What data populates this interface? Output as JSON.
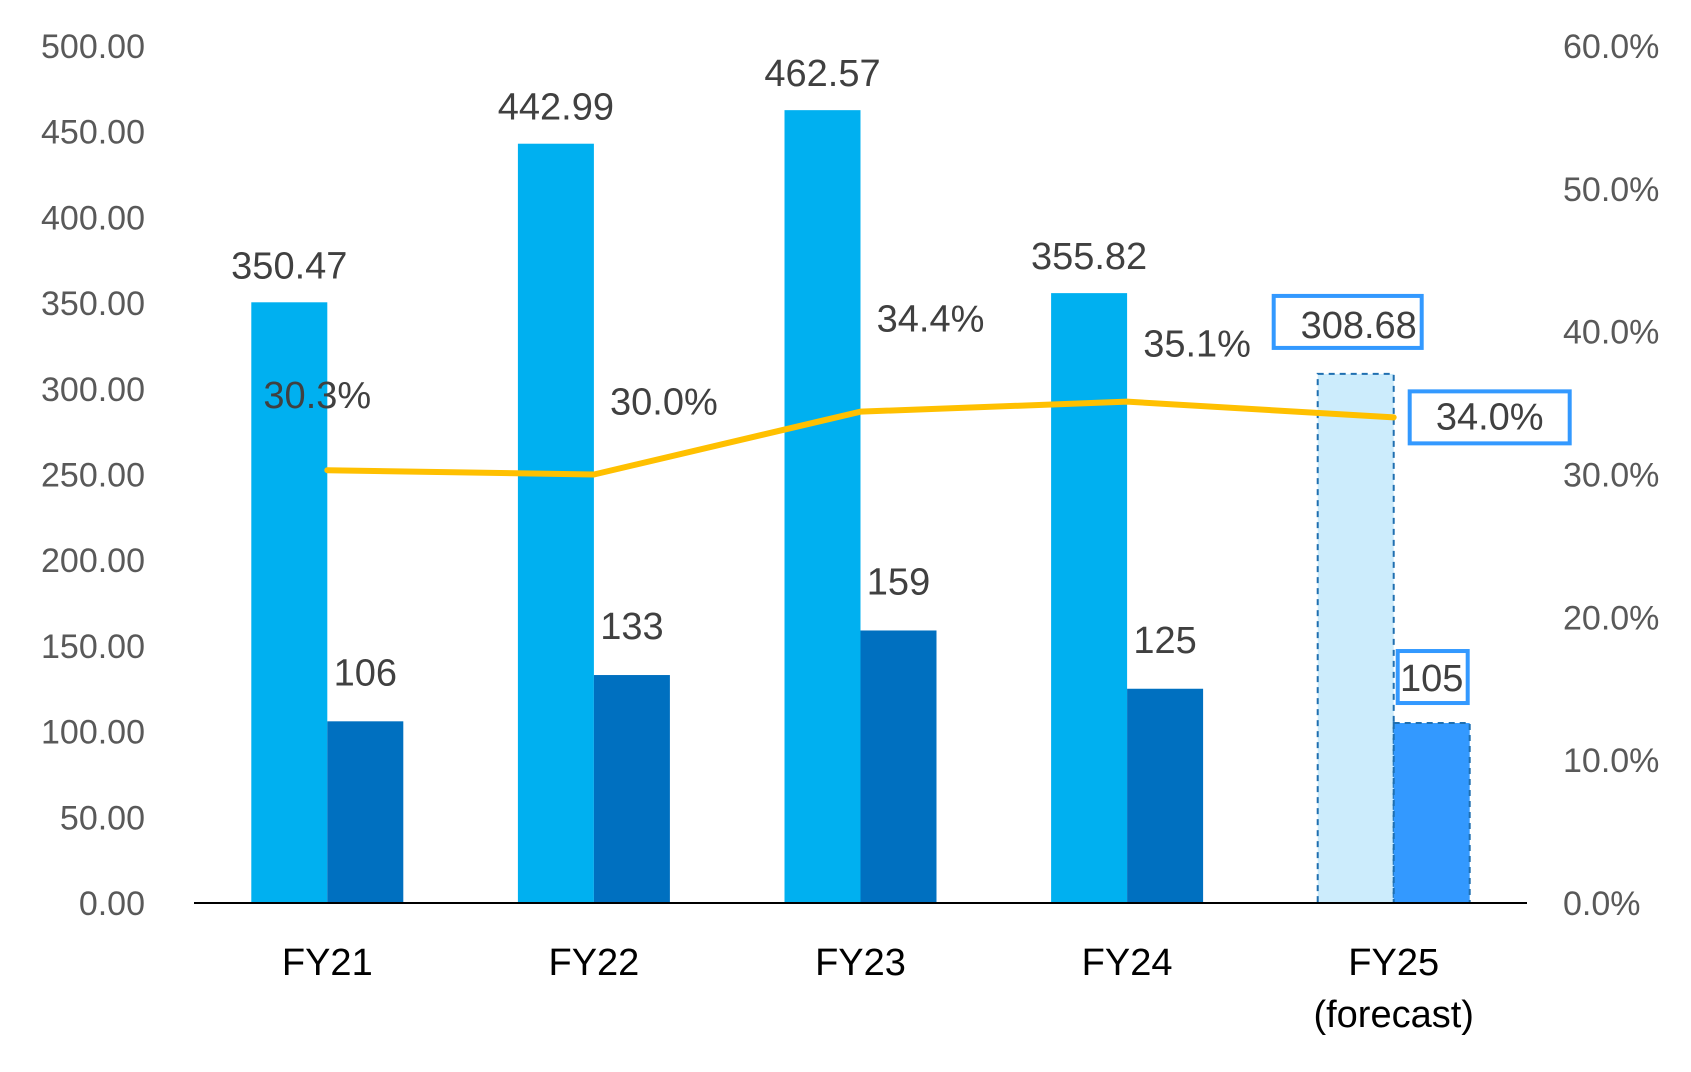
{
  "chart_data": {
    "type": "bar",
    "categories": [
      "FY21",
      "FY22",
      "FY23",
      "FY24",
      "FY25\n(forecast)"
    ],
    "series": [
      {
        "type": "bar",
        "axis": "left",
        "values": [
          350.47,
          442.99,
          462.57,
          355.82,
          308.68
        ],
        "labels": [
          "350.47",
          "442.99",
          "462.57",
          "355.82",
          "308.68"
        ]
      },
      {
        "type": "bar",
        "axis": "left",
        "values": [
          106,
          133,
          159,
          125,
          105
        ],
        "labels": [
          "106",
          "133",
          "159",
          "125",
          "105"
        ]
      },
      {
        "type": "line",
        "axis": "right",
        "values": [
          30.3,
          30.0,
          34.4,
          35.1,
          34.0
        ],
        "labels": [
          "30.3%",
          "30.0%",
          "34.4%",
          "35.1%",
          "34.0%"
        ]
      }
    ],
    "forecast_index": 4,
    "y_left": {
      "min": 0,
      "max": 500,
      "step": 50,
      "ticks": [
        "0.00",
        "50.00",
        "100.00",
        "150.00",
        "200.00",
        "250.00",
        "300.00",
        "350.00",
        "400.00",
        "450.00",
        "500.00"
      ]
    },
    "y_right": {
      "min": 0,
      "max": 60,
      "step": 10,
      "ticks": [
        "0.0%",
        "10.0%",
        "20.0%",
        "30.0%",
        "40.0%",
        "50.0%",
        "60.0%"
      ]
    },
    "grid": false,
    "legend": "none",
    "colors": {
      "bar1": "#00B0F0",
      "bar2": "#0070C0",
      "bar1_forecast": "#CCECFC",
      "bar2_forecast": "#3399FF",
      "line": "#FFC000",
      "highlight_box": "#3399FF",
      "forecast_border": "#1F6FB0",
      "axis": "#000000"
    }
  }
}
